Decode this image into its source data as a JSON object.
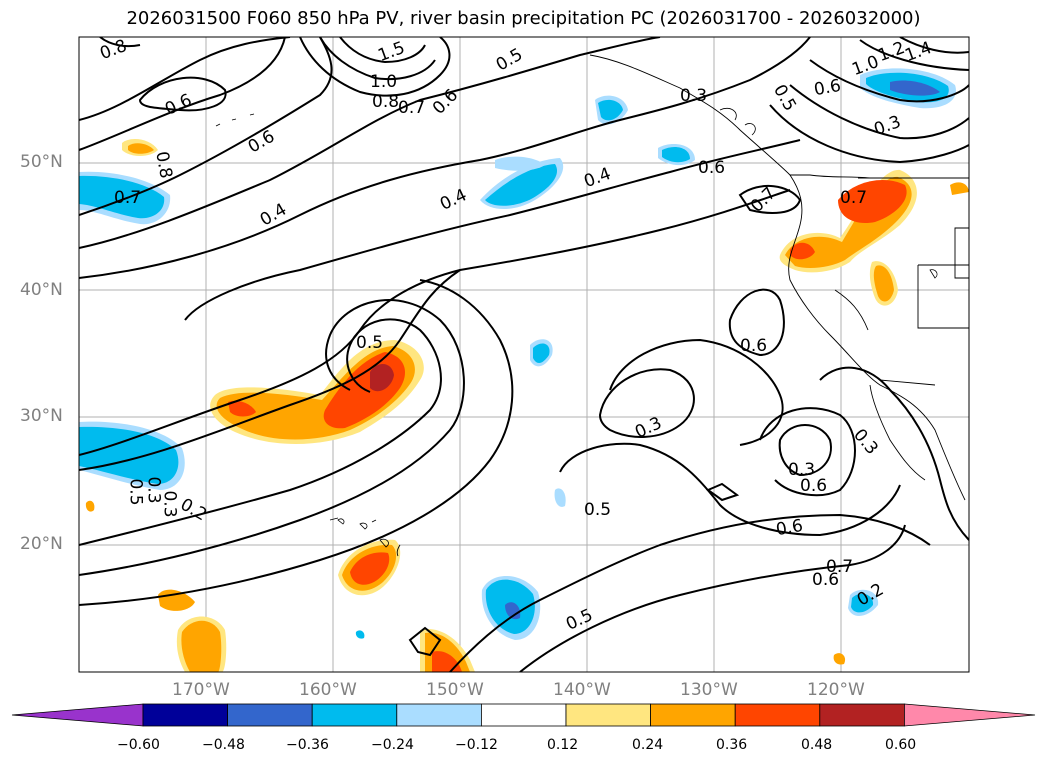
{
  "title": "2026031500 F060 850 hPa PV, river basin precipitation PC (2026031700 - 2026032000)",
  "lat_labels": [
    "50°N",
    "40°N",
    "30°N",
    "20°N"
  ],
  "lon_labels": [
    "170°W",
    "160°W",
    "150°W",
    "140°W",
    "130°W",
    "120°W"
  ],
  "colorbar": {
    "ticks": [
      "−0.60",
      "−0.48",
      "−0.36",
      "−0.24",
      "−0.12",
      "0.12",
      "0.24",
      "0.36",
      "0.48",
      "0.60"
    ],
    "colors": [
      "#9933cc",
      "#000099",
      "#3366cc",
      "#00bbee",
      "#aaddff",
      "#ffffff",
      "#ffe680",
      "#ffa500",
      "#ff4500",
      "#b22222",
      "#ff88aa"
    ]
  },
  "contour_labels": [
    "0.8",
    "0.6",
    "0.6",
    "0.7",
    "0.4",
    "0.8",
    "1.5",
    "1.0",
    "0.8",
    "0.7",
    "0.6",
    "0.5",
    "0.4",
    "0.4",
    "0.6",
    "0.7",
    "0.7",
    "0.5",
    "0.6",
    "0.3",
    "0.3",
    "0.6",
    "0.5",
    "0.6",
    "0.5",
    "0.2",
    "0.7",
    "0.6",
    "0.3",
    "0.3",
    "0.5",
    "0.3",
    "0.2",
    "1.2",
    "1.4",
    "1.0",
    "0.6",
    "0.3",
    "0.5",
    "0.3"
  ]
}
